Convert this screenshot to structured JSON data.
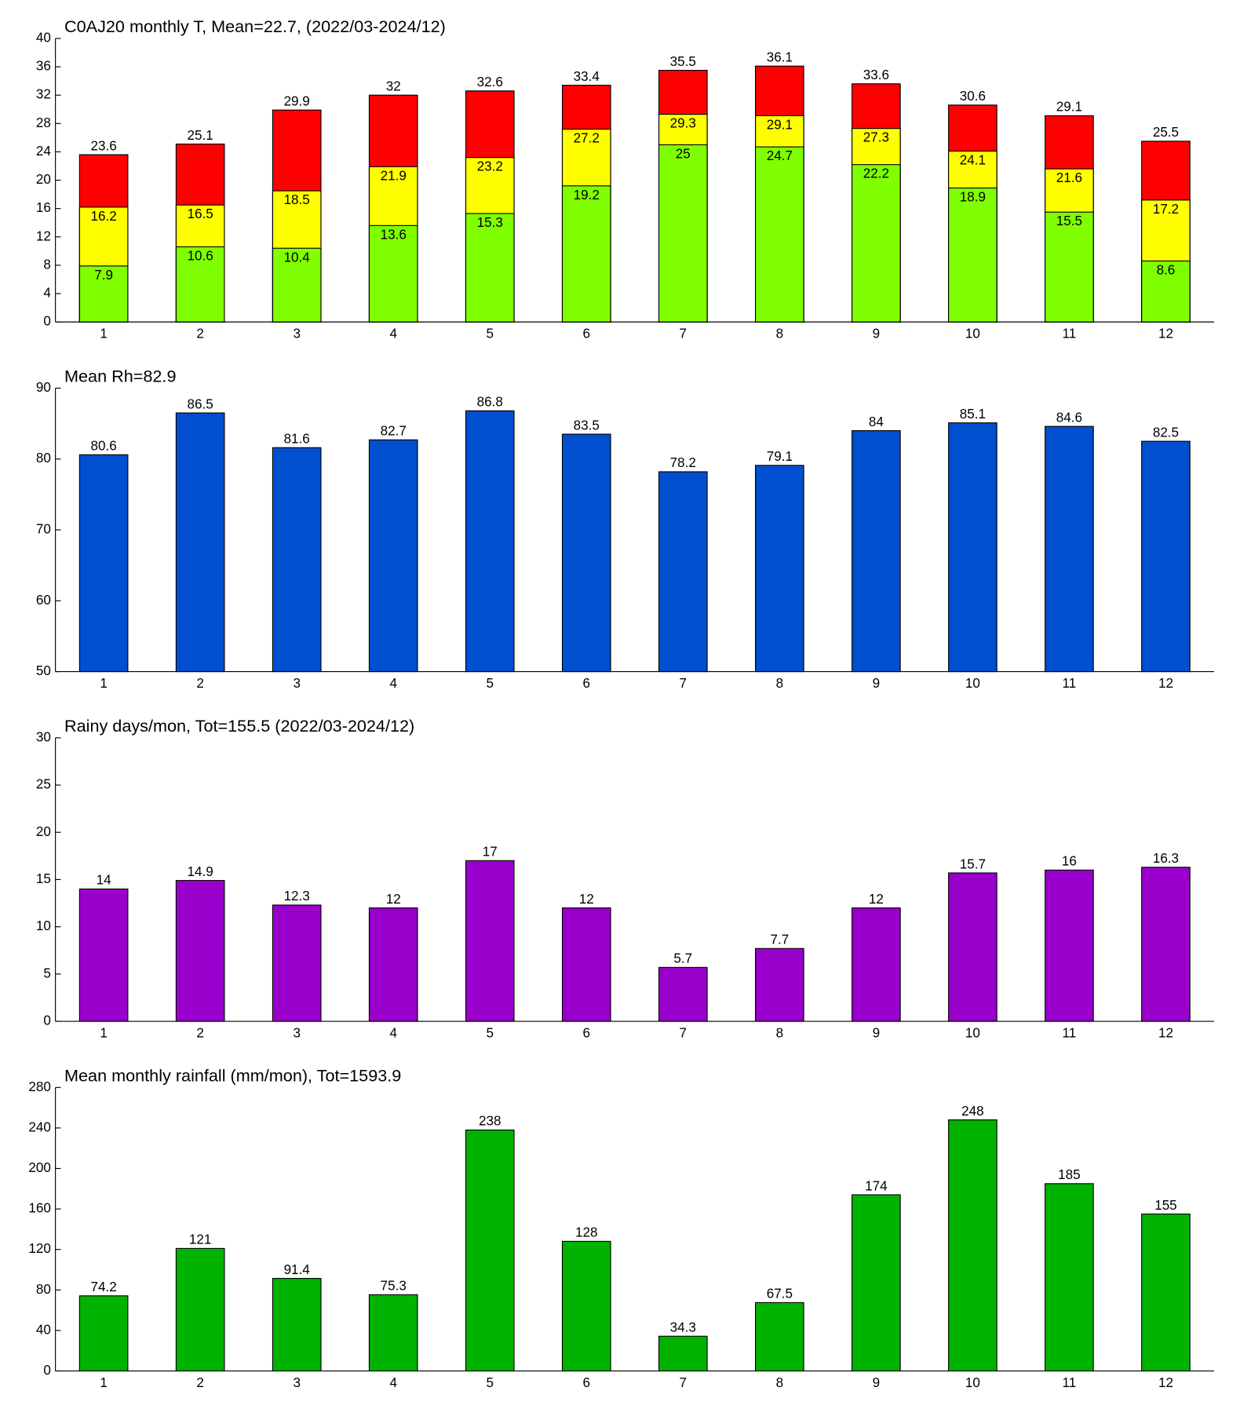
{
  "chart_data": [
    {
      "type": "bar",
      "title": "C0AJ20 monthly T, Mean=22.7, (2022/03-2024/12)",
      "categories": [
        "1",
        "2",
        "3",
        "4",
        "5",
        "6",
        "7",
        "8",
        "9",
        "10",
        "11",
        "12"
      ],
      "series": [
        {
          "color": "#ff0000",
          "values": [
            23.6,
            25.1,
            29.9,
            32,
            32.6,
            33.4,
            35.5,
            36.1,
            33.6,
            30.6,
            29.1,
            25.5
          ]
        },
        {
          "color": "#ffff00",
          "values": [
            16.2,
            16.5,
            18.5,
            21.9,
            23.2,
            27.2,
            29.3,
            29.1,
            27.3,
            24.1,
            21.6,
            17.2
          ]
        },
        {
          "color": "#80ff00",
          "values": [
            7.9,
            10.6,
            10.4,
            13.6,
            15.3,
            19.2,
            25,
            24.7,
            22.2,
            18.9,
            15.5,
            8.6
          ]
        }
      ],
      "ylim": [
        0,
        40
      ],
      "yticks": [
        0,
        4,
        8,
        12,
        16,
        20,
        24,
        28,
        32,
        36,
        40
      ]
    },
    {
      "type": "bar",
      "title": "Mean Rh=82.9",
      "categories": [
        "1",
        "2",
        "3",
        "4",
        "5",
        "6",
        "7",
        "8",
        "9",
        "10",
        "11",
        "12"
      ],
      "series": [
        {
          "color": "#004fcf",
          "values": [
            80.6,
            86.5,
            81.6,
            82.7,
            86.8,
            83.5,
            78.2,
            79.1,
            84,
            85.1,
            84.6,
            82.5
          ]
        }
      ],
      "ylim": [
        50,
        90
      ],
      "yticks": [
        50,
        60,
        70,
        80,
        90
      ]
    },
    {
      "type": "bar",
      "title": "Rainy days/mon, Tot=155.5 (2022/03-2024/12)",
      "categories": [
        "1",
        "2",
        "3",
        "4",
        "5",
        "6",
        "7",
        "8",
        "9",
        "10",
        "11",
        "12"
      ],
      "series": [
        {
          "color": "#9900cc",
          "values": [
            14,
            14.9,
            12.3,
            12,
            17,
            12,
            5.7,
            7.7,
            12,
            15.7,
            16,
            16.3
          ]
        }
      ],
      "ylim": [
        0,
        30
      ],
      "yticks": [
        0,
        5,
        10,
        15,
        20,
        25,
        30
      ]
    },
    {
      "type": "bar",
      "title": "Mean monthly rainfall (mm/mon), Tot=1593.9",
      "categories": [
        "1",
        "2",
        "3",
        "4",
        "5",
        "6",
        "7",
        "8",
        "9",
        "10",
        "11",
        "12"
      ],
      "series": [
        {
          "color": "#00b300",
          "values": [
            74.2,
            121,
            91.4,
            75.3,
            238,
            128,
            34.3,
            67.5,
            174,
            248,
            185,
            155
          ]
        }
      ],
      "ylim": [
        0,
        280
      ],
      "yticks": [
        0,
        40,
        80,
        120,
        160,
        200,
        240,
        280
      ]
    }
  ]
}
